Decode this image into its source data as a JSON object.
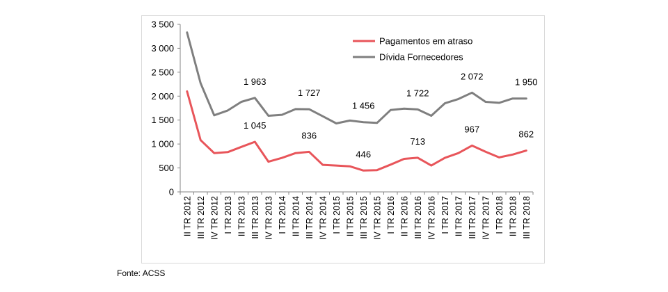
{
  "chart_data": {
    "type": "line",
    "title": "",
    "xlabel": "",
    "ylabel": "",
    "ylim": [
      0,
      3500
    ],
    "yticks": [
      0,
      500,
      1000,
      1500,
      2000,
      2500,
      3000,
      3500
    ],
    "ytick_labels": [
      "0",
      "500",
      "1 000",
      "1 500",
      "2 000",
      "2 500",
      "3 000",
      "3 500"
    ],
    "grid": false,
    "legend_position": "top-right",
    "categories": [
      "II TR 2012",
      "III TR 2012",
      "IV TR 2012",
      "I TR 2013",
      "II TR 2013",
      "III TR 2013",
      "IV TR 2013",
      "I TR 2014",
      "II TR 2014",
      "III TR 2014",
      "IV TR 2014",
      "I TR 2015",
      "II TR 2015",
      "III TR 2015",
      "IV TR 2015",
      "I TR 2016",
      "II TR 2016",
      "III TR 2016",
      "IV TR 2016",
      "I TR 2017",
      "II TR 2017",
      "III TR 2017",
      "IV TR 2017",
      "I TR 2018",
      "II TR 2018",
      "III TR 2018"
    ],
    "series": [
      {
        "name": "Pagamentos em atraso",
        "color": "#e8555a",
        "values": [
          2100,
          1080,
          810,
          830,
          940,
          1045,
          630,
          710,
          810,
          836,
          565,
          550,
          535,
          446,
          455,
          570,
          690,
          713,
          550,
          710,
          810,
          967,
          840,
          720,
          780,
          862
        ],
        "labels": [
          {
            "index": 5,
            "text": "1 045"
          },
          {
            "index": 9,
            "text": "836"
          },
          {
            "index": 13,
            "text": "446"
          },
          {
            "index": 17,
            "text": "713"
          },
          {
            "index": 21,
            "text": "967"
          },
          {
            "index": 25,
            "text": "862"
          }
        ]
      },
      {
        "name": "Dívida Fornecedores",
        "color": "#7f7f7f",
        "values": [
          3330,
          2270,
          1600,
          1700,
          1880,
          1963,
          1590,
          1610,
          1730,
          1727,
          1580,
          1430,
          1490,
          1456,
          1440,
          1710,
          1740,
          1722,
          1590,
          1850,
          1940,
          2072,
          1880,
          1860,
          1950,
          1950
        ],
        "labels": [
          {
            "index": 5,
            "text": "1 963"
          },
          {
            "index": 9,
            "text": "1 727"
          },
          {
            "index": 13,
            "text": "1 456"
          },
          {
            "index": 17,
            "text": "1 722"
          },
          {
            "index": 21,
            "text": "2 072"
          },
          {
            "index": 25,
            "text": "1 950"
          }
        ]
      }
    ]
  },
  "source_note": "Fonte: ACSS"
}
